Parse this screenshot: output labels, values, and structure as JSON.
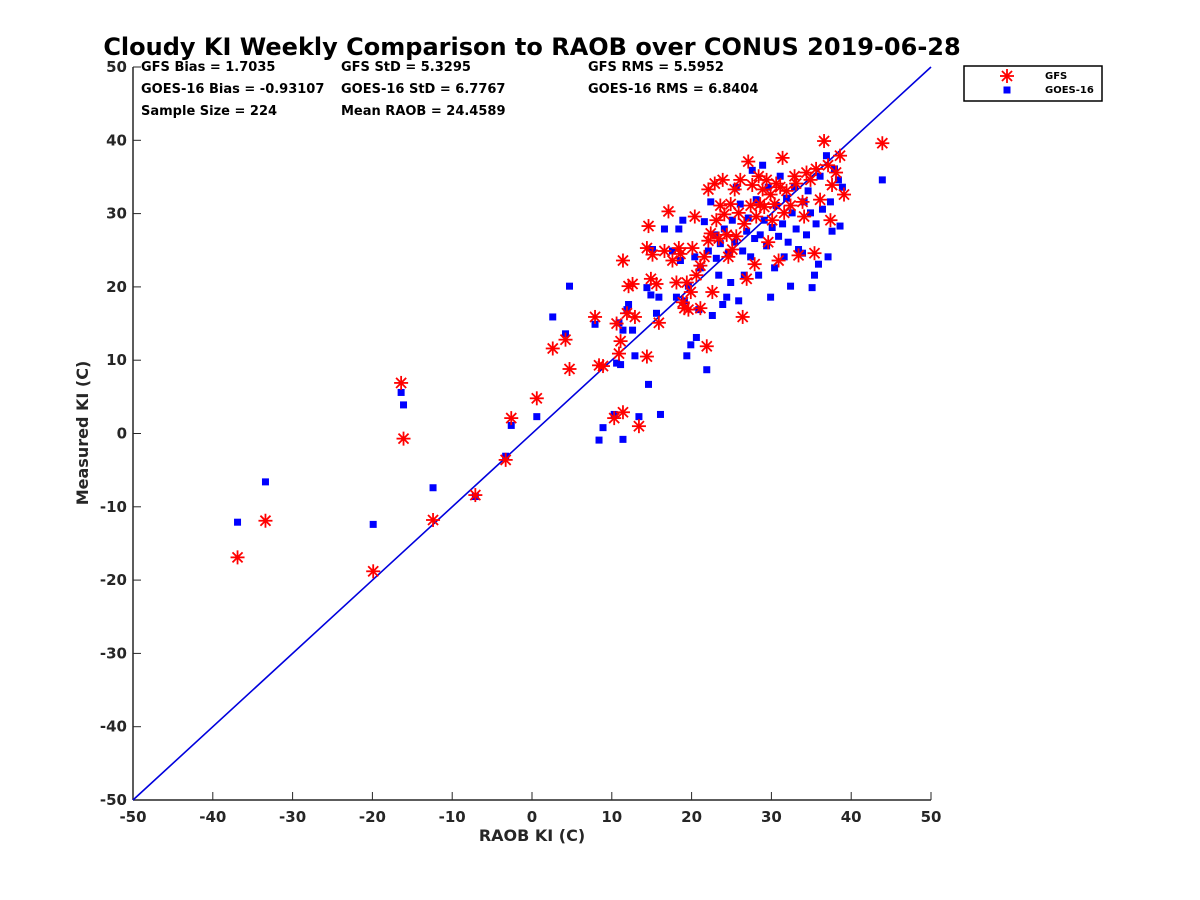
{
  "chart_data": {
    "type": "scatter",
    "title": "Cloudy KI Weekly Comparison to RAOB over CONUS 2019-06-28",
    "xlabel": "RAOB KI (C)",
    "ylabel": "Measured KI (C)",
    "xlim": [
      -50,
      50
    ],
    "ylim": [
      -50,
      50
    ],
    "x_ticks": [
      "-50",
      "-40",
      "-30",
      "-20",
      "-10",
      "0",
      "10",
      "20",
      "30",
      "40",
      "50"
    ],
    "y_ticks": [
      "-50",
      "-40",
      "-30",
      "-20",
      "-10",
      "0",
      "10",
      "20",
      "30",
      "40",
      "50"
    ],
    "grid": false,
    "legend_position": "outside top-right",
    "reference_line": {
      "type": "one-to-one",
      "color": "#0000dd"
    },
    "stats": [
      [
        "GFS Bias = 1.7035",
        "GFS StD = 5.3295",
        "GFS RMS = 5.5952"
      ],
      [
        "GOES-16 Bias = -0.93107",
        "GOES-16 StD = 6.7767",
        "GOES-16 RMS = 6.8404"
      ],
      [
        "Sample Size = 224",
        "Mean RAOB = 24.4589",
        ""
      ]
    ],
    "series": [
      {
        "name": "GFS",
        "marker": "asterisk",
        "color": "#ff0000",
        "points": [
          [
            -36.9,
            -16.9
          ],
          [
            -33.4,
            -11.9
          ],
          [
            -19.9,
            -18.8
          ],
          [
            -16.4,
            6.9
          ],
          [
            -16.1,
            -0.7
          ],
          [
            -12.4,
            -11.8
          ],
          [
            -7.1,
            -8.4
          ],
          [
            -3.3,
            -3.6
          ],
          [
            -2.6,
            2.1
          ],
          [
            0.6,
            4.8
          ],
          [
            2.6,
            11.6
          ],
          [
            4.2,
            12.8
          ],
          [
            4.7,
            8.8
          ],
          [
            7.9,
            15.9
          ],
          [
            8.4,
            9.3
          ],
          [
            8.9,
            9.2
          ],
          [
            10.3,
            2.1
          ],
          [
            10.6,
            15.0
          ],
          [
            10.9,
            10.9
          ],
          [
            11.1,
            12.6
          ],
          [
            11.4,
            23.6
          ],
          [
            11.4,
            2.9
          ],
          [
            11.9,
            16.4
          ],
          [
            12.1,
            20.1
          ],
          [
            12.6,
            20.4
          ],
          [
            12.9,
            15.9
          ],
          [
            13.4,
            1.0
          ],
          [
            14.4,
            25.3
          ],
          [
            14.4,
            10.5
          ],
          [
            14.6,
            28.3
          ],
          [
            14.9,
            21.1
          ],
          [
            15.1,
            24.4
          ],
          [
            15.6,
            20.4
          ],
          [
            15.9,
            15.1
          ],
          [
            16.6,
            24.9
          ],
          [
            17.1,
            30.3
          ],
          [
            17.6,
            23.6
          ],
          [
            18.1,
            20.6
          ],
          [
            18.4,
            25.3
          ],
          [
            18.6,
            24.5
          ],
          [
            18.9,
            17.9
          ],
          [
            19.1,
            17.1
          ],
          [
            19.4,
            20.6
          ],
          [
            19.6,
            16.9
          ],
          [
            19.9,
            19.3
          ],
          [
            20.1,
            25.3
          ],
          [
            20.4,
            29.6
          ],
          [
            20.6,
            21.6
          ],
          [
            21.1,
            17.1
          ],
          [
            21.1,
            22.9
          ],
          [
            21.6,
            24.1
          ],
          [
            21.9,
            11.9
          ],
          [
            22.1,
            26.3
          ],
          [
            22.1,
            33.3
          ],
          [
            22.4,
            27.3
          ],
          [
            22.6,
            19.3
          ],
          [
            22.9,
            34.1
          ],
          [
            23.1,
            29.1
          ],
          [
            23.4,
            26.6
          ],
          [
            23.6,
            31.1
          ],
          [
            23.9,
            34.6
          ],
          [
            24.1,
            29.9
          ],
          [
            24.4,
            27.1
          ],
          [
            24.6,
            24.1
          ],
          [
            24.9,
            31.3
          ],
          [
            25.1,
            25.1
          ],
          [
            25.4,
            33.3
          ],
          [
            25.6,
            26.9
          ],
          [
            25.9,
            30.1
          ],
          [
            26.1,
            34.6
          ],
          [
            26.4,
            15.9
          ],
          [
            26.6,
            28.6
          ],
          [
            26.9,
            21.1
          ],
          [
            27.1,
            37.1
          ],
          [
            27.4,
            31.1
          ],
          [
            27.6,
            33.9
          ],
          [
            27.9,
            23.1
          ],
          [
            28.1,
            29.6
          ],
          [
            28.4,
            35.1
          ],
          [
            28.6,
            31.3
          ],
          [
            28.9,
            33.3
          ],
          [
            29.1,
            30.9
          ],
          [
            29.4,
            34.6
          ],
          [
            29.6,
            26.1
          ],
          [
            29.9,
            32.6
          ],
          [
            30.1,
            29.1
          ],
          [
            30.4,
            31.3
          ],
          [
            30.6,
            34.1
          ],
          [
            30.9,
            23.6
          ],
          [
            31.1,
            33.6
          ],
          [
            31.4,
            37.6
          ],
          [
            31.6,
            30.1
          ],
          [
            31.9,
            33.1
          ],
          [
            32.4,
            31.1
          ],
          [
            32.9,
            35.1
          ],
          [
            33.1,
            34.1
          ],
          [
            33.4,
            24.3
          ],
          [
            33.9,
            31.6
          ],
          [
            34.1,
            29.6
          ],
          [
            34.4,
            35.6
          ],
          [
            34.9,
            34.6
          ],
          [
            35.4,
            24.6
          ],
          [
            35.6,
            36.1
          ],
          [
            36.1,
            31.9
          ],
          [
            36.6,
            39.9
          ],
          [
            37.1,
            36.6
          ],
          [
            37.4,
            29.1
          ],
          [
            37.6,
            33.9
          ],
          [
            38.1,
            35.6
          ],
          [
            38.6,
            37.9
          ],
          [
            39.1,
            32.6
          ],
          [
            43.9,
            39.6
          ]
        ]
      },
      {
        "name": "GOES-16",
        "marker": "square",
        "color": "#0000ff",
        "points": [
          [
            -36.9,
            -12.1
          ],
          [
            -33.4,
            -6.6
          ],
          [
            -19.9,
            -12.4
          ],
          [
            -16.4,
            5.6
          ],
          [
            -16.1,
            3.9
          ],
          [
            -12.4,
            -7.4
          ],
          [
            -7.1,
            -8.6
          ],
          [
            -3.3,
            -3.1
          ],
          [
            -2.6,
            1.1
          ],
          [
            0.6,
            2.3
          ],
          [
            2.6,
            15.9
          ],
          [
            4.2,
            13.6
          ],
          [
            4.7,
            20.1
          ],
          [
            7.9,
            14.9
          ],
          [
            8.4,
            -0.9
          ],
          [
            8.9,
            0.8
          ],
          [
            10.3,
            2.6
          ],
          [
            10.6,
            9.6
          ],
          [
            10.9,
            15.1
          ],
          [
            11.1,
            9.4
          ],
          [
            11.4,
            14.1
          ],
          [
            11.4,
            -0.8
          ],
          [
            11.9,
            16.9
          ],
          [
            12.1,
            17.6
          ],
          [
            12.6,
            14.1
          ],
          [
            12.9,
            10.6
          ],
          [
            13.4,
            2.3
          ],
          [
            14.4,
            19.9
          ],
          [
            14.6,
            6.7
          ],
          [
            14.9,
            18.9
          ],
          [
            15.1,
            25.1
          ],
          [
            15.6,
            16.4
          ],
          [
            15.9,
            18.6
          ],
          [
            16.1,
            2.6
          ],
          [
            16.6,
            27.9
          ],
          [
            17.6,
            24.9
          ],
          [
            18.1,
            18.6
          ],
          [
            18.4,
            27.9
          ],
          [
            18.6,
            23.6
          ],
          [
            18.9,
            29.1
          ],
          [
            19.1,
            18.1
          ],
          [
            19.4,
            10.6
          ],
          [
            19.6,
            20.1
          ],
          [
            19.9,
            12.1
          ],
          [
            20.4,
            24.1
          ],
          [
            20.6,
            13.1
          ],
          [
            20.9,
            16.9
          ],
          [
            21.1,
            22.6
          ],
          [
            21.6,
            28.9
          ],
          [
            21.9,
            8.7
          ],
          [
            22.1,
            24.9
          ],
          [
            22.4,
            31.6
          ],
          [
            22.6,
            16.1
          ],
          [
            22.9,
            27.1
          ],
          [
            23.1,
            23.9
          ],
          [
            23.4,
            21.6
          ],
          [
            23.6,
            25.9
          ],
          [
            23.9,
            17.6
          ],
          [
            24.1,
            27.9
          ],
          [
            24.4,
            18.6
          ],
          [
            24.6,
            24.6
          ],
          [
            24.9,
            20.6
          ],
          [
            25.1,
            29.1
          ],
          [
            25.4,
            26.1
          ],
          [
            25.6,
            33.6
          ],
          [
            25.9,
            18.1
          ],
          [
            26.1,
            31.3
          ],
          [
            26.4,
            24.9
          ],
          [
            26.6,
            21.6
          ],
          [
            26.9,
            27.6
          ],
          [
            27.1,
            29.4
          ],
          [
            27.4,
            24.1
          ],
          [
            27.6,
            35.9
          ],
          [
            27.9,
            26.6
          ],
          [
            28.1,
            31.9
          ],
          [
            28.4,
            21.6
          ],
          [
            28.6,
            27.1
          ],
          [
            28.9,
            36.6
          ],
          [
            29.1,
            29.1
          ],
          [
            29.4,
            25.6
          ],
          [
            29.6,
            33.6
          ],
          [
            29.9,
            18.6
          ],
          [
            30.1,
            28.1
          ],
          [
            30.4,
            22.6
          ],
          [
            30.6,
            31.1
          ],
          [
            30.9,
            26.9
          ],
          [
            31.1,
            35.1
          ],
          [
            31.4,
            28.6
          ],
          [
            31.6,
            24.1
          ],
          [
            31.9,
            32.1
          ],
          [
            32.1,
            26.1
          ],
          [
            32.4,
            20.1
          ],
          [
            32.6,
            30.1
          ],
          [
            32.9,
            33.6
          ],
          [
            33.1,
            27.9
          ],
          [
            33.4,
            25.1
          ],
          [
            33.9,
            24.6
          ],
          [
            34.1,
            31.6
          ],
          [
            34.4,
            27.1
          ],
          [
            34.6,
            33.1
          ],
          [
            34.9,
            30.1
          ],
          [
            35.1,
            19.9
          ],
          [
            35.4,
            21.6
          ],
          [
            35.6,
            28.6
          ],
          [
            35.9,
            23.1
          ],
          [
            36.1,
            35.1
          ],
          [
            36.4,
            30.6
          ],
          [
            36.9,
            37.9
          ],
          [
            37.1,
            24.1
          ],
          [
            37.4,
            31.6
          ],
          [
            37.6,
            27.6
          ],
          [
            37.9,
            36.1
          ],
          [
            38.4,
            34.6
          ],
          [
            38.6,
            28.3
          ],
          [
            38.9,
            33.6
          ],
          [
            43.9,
            34.6
          ]
        ]
      }
    ]
  }
}
